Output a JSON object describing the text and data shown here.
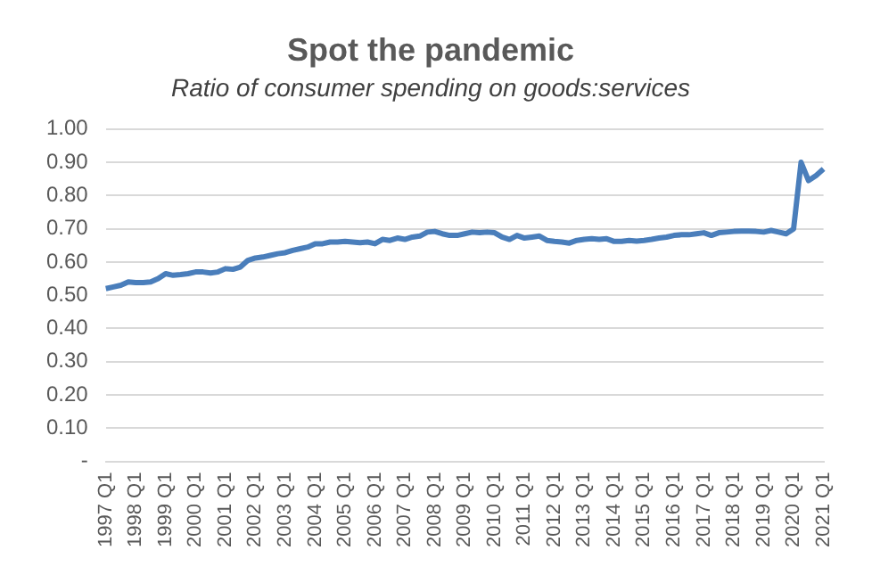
{
  "chart_data": {
    "type": "line",
    "title": "Spot the pandemic",
    "subtitle": "Ratio of consumer spending on goods:services",
    "categories": [
      "1997 Q1",
      null,
      null,
      null,
      "1998 Q1",
      null,
      null,
      null,
      "1999 Q1",
      null,
      null,
      null,
      "2000 Q1",
      null,
      null,
      null,
      "2001 Q1",
      null,
      null,
      null,
      "2002 Q1",
      null,
      null,
      null,
      "2003 Q1",
      null,
      null,
      null,
      "2004 Q1",
      null,
      null,
      null,
      "2005 Q1",
      null,
      null,
      null,
      "2006 Q1",
      null,
      null,
      null,
      "2007 Q1",
      null,
      null,
      null,
      "2008 Q1",
      null,
      null,
      null,
      "2009 Q1",
      null,
      null,
      null,
      "2010 Q1",
      null,
      null,
      null,
      "2011 Q1",
      null,
      null,
      null,
      "2012 Q1",
      null,
      null,
      null,
      "2013 Q1",
      null,
      null,
      null,
      "2014 Q1",
      null,
      null,
      null,
      "2015 Q1",
      null,
      null,
      null,
      "2016 Q1",
      null,
      null,
      null,
      "2017 Q1",
      null,
      null,
      null,
      "2018 Q1",
      null,
      null,
      null,
      "2019 Q1",
      null,
      null,
      null,
      "2020 Q1",
      null,
      null,
      null,
      "2021 Q1"
    ],
    "series": [
      {
        "color": "#4a7ebb",
        "values": [
          0.52,
          0.525,
          0.53,
          0.54,
          0.538,
          0.538,
          0.54,
          0.55,
          0.565,
          0.56,
          0.562,
          0.565,
          0.57,
          0.57,
          0.567,
          0.57,
          0.58,
          0.578,
          0.585,
          0.605,
          0.612,
          0.615,
          0.62,
          0.625,
          0.628,
          0.635,
          0.64,
          0.645,
          0.655,
          0.655,
          0.66,
          0.66,
          0.662,
          0.66,
          0.658,
          0.66,
          0.655,
          0.668,
          0.665,
          0.672,
          0.668,
          0.675,
          0.678,
          0.69,
          0.692,
          0.685,
          0.68,
          0.68,
          0.685,
          0.69,
          0.688,
          0.69,
          0.688,
          0.675,
          0.668,
          0.68,
          0.672,
          0.675,
          0.678,
          0.665,
          0.662,
          0.66,
          0.657,
          0.665,
          0.668,
          0.67,
          0.668,
          0.67,
          0.662,
          0.662,
          0.665,
          0.663,
          0.665,
          0.668,
          0.672,
          0.675,
          0.68,
          0.682,
          0.682,
          0.685,
          0.688,
          0.68,
          0.688,
          0.69,
          0.692,
          0.693,
          0.693,
          0.692,
          0.69,
          0.695,
          0.69,
          0.685,
          0.7,
          0.9,
          0.845,
          0.86,
          0.88
        ]
      }
    ],
    "ylim": [
      0,
      1
    ],
    "yticks": [
      {
        "value": 0,
        "label": "-"
      },
      {
        "value": 0.1,
        "label": "0.10"
      },
      {
        "value": 0.2,
        "label": "0.20"
      },
      {
        "value": 0.3,
        "label": "0.30"
      },
      {
        "value": 0.4,
        "label": "0.40"
      },
      {
        "value": 0.5,
        "label": "0.50"
      },
      {
        "value": 0.6,
        "label": "0.60"
      },
      {
        "value": 0.7,
        "label": "0.70"
      },
      {
        "value": 0.8,
        "label": "0.80"
      },
      {
        "value": 0.9,
        "label": "0.90"
      },
      {
        "value": 1,
        "label": "1.00"
      }
    ],
    "grid": "y",
    "marker": "none",
    "line_style": "solid"
  }
}
